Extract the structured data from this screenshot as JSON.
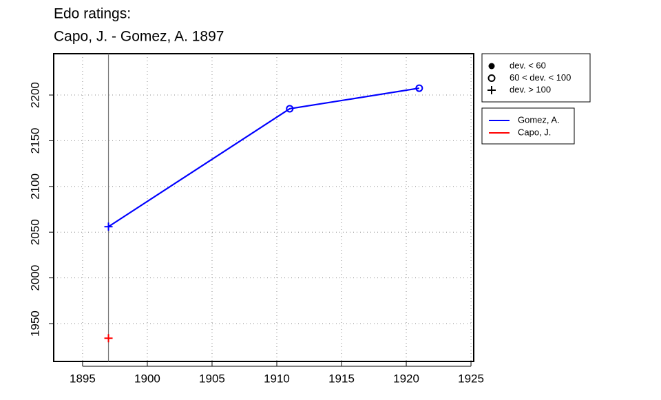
{
  "chart_data": {
    "type": "line",
    "title": "Edo ratings:",
    "subtitle": "Capo, J. - Gomez, A. 1897",
    "xlim": [
      1892.77,
      1925.21
    ],
    "xticks": [
      1895,
      1900,
      1905,
      1910,
      1915,
      1920,
      1925
    ],
    "ylim": [
      1908.6,
      2245.2
    ],
    "yticks": [
      1950,
      2000,
      2050,
      2100,
      2150,
      2200
    ],
    "grid": true,
    "vline": 1897,
    "series": [
      {
        "name": "Gomez, A.",
        "color": "#0000ff",
        "x": [
          1897,
          1911,
          1921
        ],
        "values": [
          2056,
          2185,
          2207.5
        ],
        "markers": [
          "plus",
          "circle",
          "circle"
        ]
      },
      {
        "name": "Capo, J.",
        "color": "#ff0000",
        "x": [
          1897
        ],
        "values": [
          1934
        ],
        "markers": [
          "plus"
        ]
      }
    ],
    "marker_legend": [
      {
        "label": "dev. < 60",
        "marker": "dot"
      },
      {
        "label": "60 < dev. < 100",
        "marker": "circle"
      },
      {
        "label": "dev. > 100",
        "marker": "plus"
      }
    ]
  }
}
